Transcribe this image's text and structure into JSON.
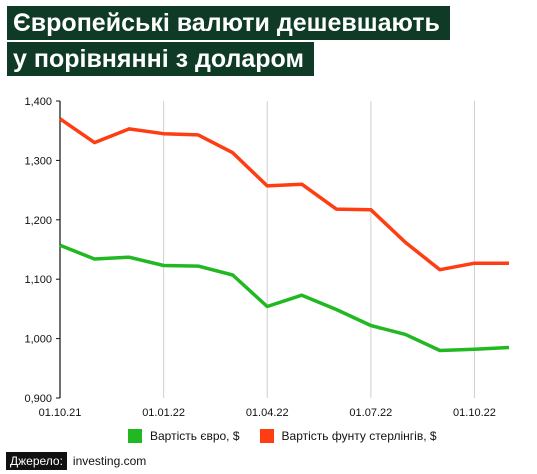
{
  "title_line1": "Європейські валюти дешевшають",
  "title_line2": "у порівнянні з доларом",
  "source_label": "Джерело:",
  "source_value": "investing.com",
  "colors": {
    "title_bg": "#0e3a26",
    "euro": "#22b822",
    "pound": "#ff3d12"
  },
  "chart_data": {
    "type": "line",
    "x": [
      "01.10.21",
      "01.11.21",
      "01.12.21",
      "01.01.22",
      "01.02.22",
      "01.03.22",
      "01.04.22",
      "01.05.22",
      "01.06.22",
      "01.07.22",
      "01.08.22",
      "01.09.22",
      "01.10.22",
      "01.11.22"
    ],
    "x_ticks": [
      "01.10.21",
      "01.01.22",
      "01.04.22",
      "01.07.22",
      "01.10.22"
    ],
    "ylim": [
      0.9,
      1.4
    ],
    "y_ticks": [
      "0,900",
      "1,000",
      "1,100",
      "1,200",
      "1,300",
      "1,400"
    ],
    "y_tick_values": [
      0.9,
      1.0,
      1.1,
      1.2,
      1.3,
      1.4
    ],
    "grid": "vertical",
    "legend_position": "bottom",
    "series": [
      {
        "name": "Вартість євро, $",
        "color": "#22b822",
        "values": [
          1.157,
          1.134,
          1.137,
          1.123,
          1.122,
          1.107,
          1.054,
          1.073,
          1.049,
          1.022,
          1.007,
          0.98,
          0.982,
          0.985
        ]
      },
      {
        "name": "Вартість фунту стерлінгів, $",
        "color": "#ff3d12",
        "values": [
          1.37,
          1.33,
          1.353,
          1.345,
          1.343,
          1.313,
          1.257,
          1.26,
          1.218,
          1.217,
          1.162,
          1.116,
          1.127,
          1.127
        ]
      }
    ]
  }
}
